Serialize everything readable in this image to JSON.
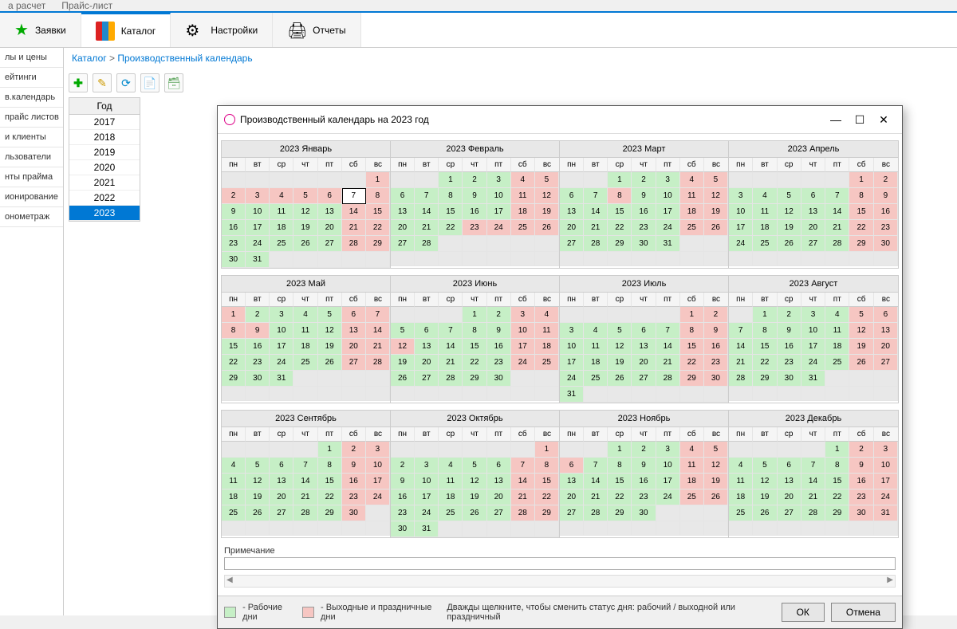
{
  "topnav": {
    "items": [
      "а расчет",
      "Прайс-лист"
    ]
  },
  "ribbon": {
    "tabs": [
      {
        "label": "Заявки",
        "icon": "star"
      },
      {
        "label": "Каталог",
        "icon": "books",
        "active": true
      },
      {
        "label": "Настройки",
        "icon": "gear"
      },
      {
        "label": "Отчеты",
        "icon": "printer"
      }
    ]
  },
  "sidebar": {
    "items": [
      "лы и цены",
      "ейтинги",
      "в.календарь",
      "прайс листов",
      "и клиенты",
      "льзователи",
      "нты прайма",
      "ионирование",
      "онометраж"
    ]
  },
  "breadcrumb": {
    "root": "Каталог",
    "sep": ">",
    "current": "Производственный календарь"
  },
  "toolbar": {
    "buttons": [
      "plus",
      "pencil",
      "refresh",
      "folder",
      "trash"
    ]
  },
  "yearcol": {
    "header": "Год",
    "years": [
      "2017",
      "2018",
      "2019",
      "2020",
      "2021",
      "2022",
      "2023"
    ],
    "selected": "2023"
  },
  "modal": {
    "title": "Производственный календарь на 2023 год",
    "dow": [
      "пн",
      "вт",
      "ср",
      "чт",
      "пт",
      "сб",
      "вс"
    ],
    "months": [
      {
        "title": "2023 Январь",
        "start": 7,
        "len": 31,
        "off": [
          1,
          2,
          3,
          4,
          5,
          6,
          7,
          8,
          14,
          15,
          21,
          22,
          28,
          29
        ],
        "today": 7
      },
      {
        "title": "2023 Февраль",
        "start": 3,
        "len": 28,
        "off": [
          4,
          5,
          11,
          12,
          18,
          19,
          23,
          24,
          25,
          26
        ]
      },
      {
        "title": "2023 Март",
        "start": 3,
        "len": 31,
        "off": [
          4,
          5,
          8,
          11,
          12,
          18,
          19,
          25,
          26
        ]
      },
      {
        "title": "2023 Апрель",
        "start": 6,
        "len": 30,
        "off": [
          1,
          2,
          8,
          9,
          15,
          16,
          22,
          23,
          29,
          30
        ]
      },
      {
        "title": "2023 Май",
        "start": 1,
        "len": 31,
        "off": [
          1,
          6,
          7,
          8,
          9,
          13,
          14,
          20,
          21,
          27,
          28
        ]
      },
      {
        "title": "2023 Июнь",
        "start": 4,
        "len": 30,
        "off": [
          3,
          4,
          10,
          11,
          12,
          17,
          18,
          24,
          25
        ]
      },
      {
        "title": "2023 Июль",
        "start": 6,
        "len": 31,
        "off": [
          1,
          2,
          8,
          9,
          15,
          16,
          22,
          23,
          29,
          30
        ]
      },
      {
        "title": "2023 Август",
        "start": 2,
        "len": 31,
        "off": [
          5,
          6,
          12,
          13,
          19,
          20,
          26,
          27
        ]
      },
      {
        "title": "2023 Сентябрь",
        "start": 5,
        "len": 30,
        "off": [
          2,
          3,
          9,
          10,
          16,
          17,
          23,
          24,
          30
        ]
      },
      {
        "title": "2023 Октябрь",
        "start": 7,
        "len": 31,
        "off": [
          1,
          7,
          8,
          14,
          15,
          21,
          22,
          28,
          29
        ]
      },
      {
        "title": "2023 Ноябрь",
        "start": 3,
        "len": 30,
        "off": [
          4,
          5,
          6,
          11,
          12,
          18,
          19,
          25,
          26
        ]
      },
      {
        "title": "2023 Декабрь",
        "start": 5,
        "len": 31,
        "off": [
          2,
          3,
          9,
          10,
          16,
          17,
          23,
          24,
          30,
          31
        ]
      }
    ],
    "note_label": "Примечание",
    "legend": {
      "work": "- Рабочие дни",
      "off": "- Выходные и праздничные дни",
      "hint": "Дважды щелкните, чтобы сменить статус дня: рабочий / выходной или праздничный",
      "ok": "ОК",
      "cancel": "Отмена"
    }
  }
}
